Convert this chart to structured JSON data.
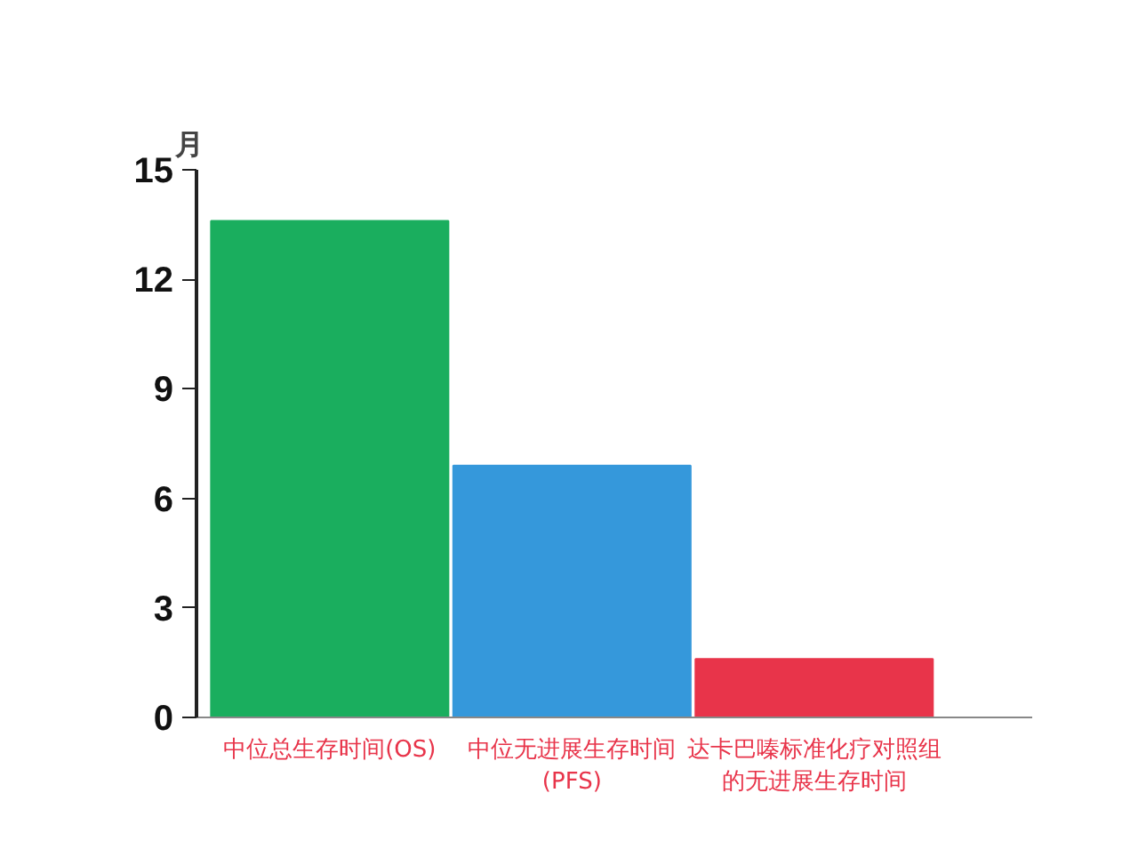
{
  "chart_data": {
    "type": "bar",
    "ylabel": "月",
    "categories": [
      "中位总生存时间(OS)",
      "中位无进展生存时间(PFS)",
      "达卡巴嗪标准化疗对照组的无进展生存时间"
    ],
    "values": [
      13.6,
      6.9,
      1.6
    ],
    "colors": [
      "#1aae5e",
      "#3598db",
      "#e8344a"
    ],
    "ylim": [
      0,
      15
    ],
    "yticks": [
      0,
      3,
      6,
      9,
      12,
      15
    ],
    "grid": false
  }
}
